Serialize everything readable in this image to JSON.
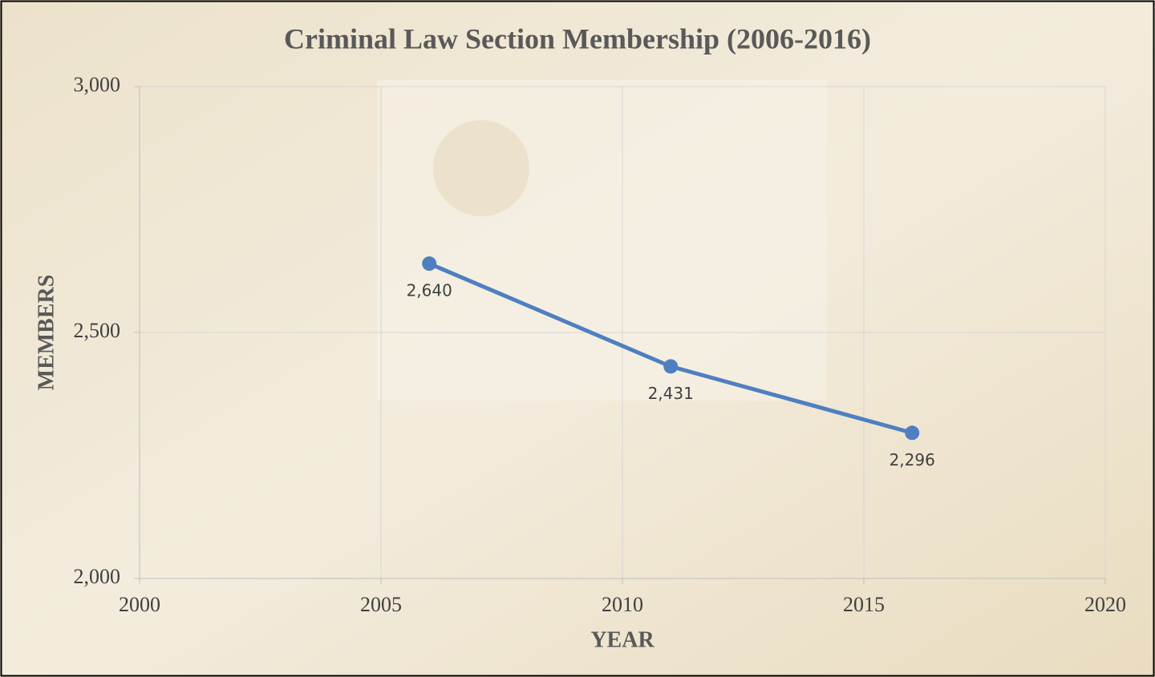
{
  "chart_data": {
    "type": "line",
    "title": "Criminal Law Section Membership (2006-2016)",
    "x_label": "YEAR",
    "y_label": "MEMBERS",
    "x": [
      2006,
      2011,
      2016
    ],
    "series": [
      {
        "name": "Members",
        "color": "#4f7fc0",
        "values": [
          2640,
          2431,
          2296
        ],
        "value_labels": [
          "2,640",
          "2,431",
          "2,296"
        ]
      }
    ],
    "xlim": [
      2000,
      2020
    ],
    "xticks": [
      2000,
      2005,
      2010,
      2015,
      2020
    ],
    "ylim": [
      2000,
      3000
    ],
    "yticks": [
      {
        "value": 2000,
        "label": "2,000"
      },
      {
        "value": 2500,
        "label": "2,500"
      },
      {
        "value": 3000,
        "label": "3,000"
      }
    ],
    "grid": true
  }
}
